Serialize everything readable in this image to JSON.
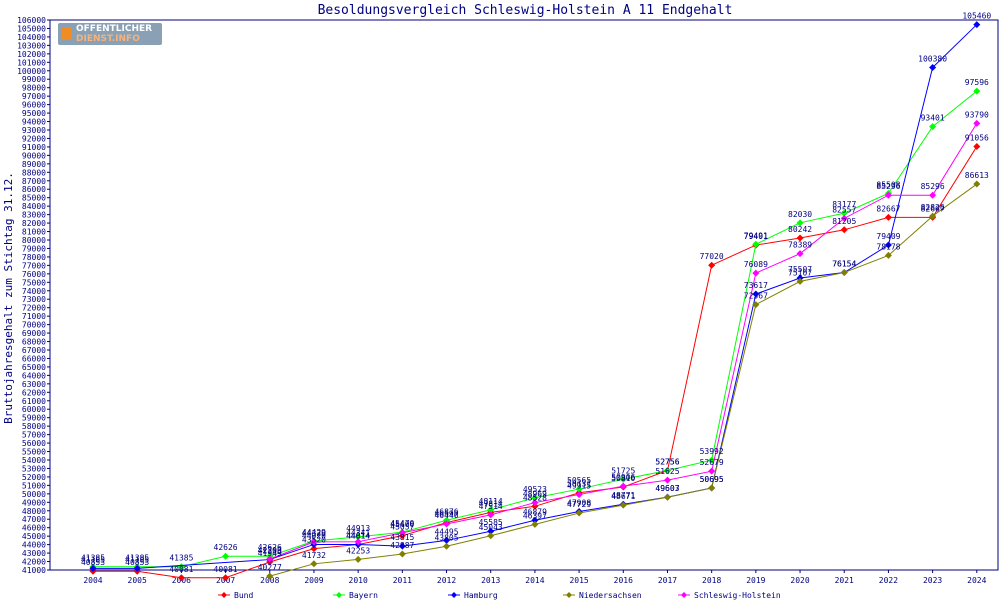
{
  "chart_data": {
    "type": "line",
    "title": "Besoldungsvergleich Schleswig-Holstein A 11 Endgehalt",
    "ylabel": "Bruttojahresgehalt zum Stichtag 31.12.",
    "xlabel": "",
    "x": [
      "2004",
      "2005",
      "2006",
      "2007",
      "2008",
      "2009",
      "2010",
      "2011",
      "2012",
      "2013",
      "2014",
      "2015",
      "2016",
      "2017",
      "2018",
      "2019",
      "2020",
      "2021",
      "2022",
      "2023",
      "2024"
    ],
    "ylim": [
      41000,
      106000
    ],
    "ytick_step": 1000,
    "grid": false,
    "legend_position": "bottom",
    "series": [
      {
        "name": "Bund",
        "color": "#ff0000",
        "values": [
          40853,
          40853,
          40081,
          40081,
          41949,
          43520,
          44014,
          45057,
          46597,
          47814,
          48528,
          50131,
          50810,
          52756,
          77020,
          79401,
          80242,
          81205,
          82667,
          82667,
          91056
        ]
      },
      {
        "name": "Bayern",
        "color": "#00ff00",
        "values": [
          41385,
          41385,
          41385,
          42626,
          42626,
          44429,
          44913,
          45470,
          46876,
          48114,
          49523,
          50565,
          51725,
          52756,
          53992,
          79491,
          82030,
          83177,
          85508,
          93401,
          97596
        ]
      },
      {
        "name": "Hamburg",
        "color": "#0000ff",
        "values": [
          41185,
          41185,
          null,
          null,
          42233,
          44020,
          44014,
          43815,
          44495,
          45585,
          46879,
          47908,
          48771,
          49607,
          50695,
          73617,
          75507,
          76154,
          79409,
          100380,
          105460
        ]
      },
      {
        "name": "Niedersachsen",
        "color": "#808000",
        "values": [
          null,
          null,
          null,
          null,
          40277,
          41732,
          42253,
          42887,
          43805,
          45043,
          46397,
          47729,
          48671,
          49603,
          50695,
          72367,
          75107,
          76154,
          78178,
          82826,
          86613
        ]
      },
      {
        "name": "Schleswig-Holstein",
        "color": "#ff00ff",
        "values": [
          null,
          null,
          null,
          null,
          42300,
          44320,
          44341,
          45400,
          46440,
          47514,
          48969,
          49915,
          50906,
          51625,
          52679,
          76089,
          78389,
          82557,
          85296,
          85296,
          93790
        ]
      }
    ]
  },
  "logo": {
    "line1": "OFFENTLICHER",
    "line2": "DIENST.INFO"
  }
}
